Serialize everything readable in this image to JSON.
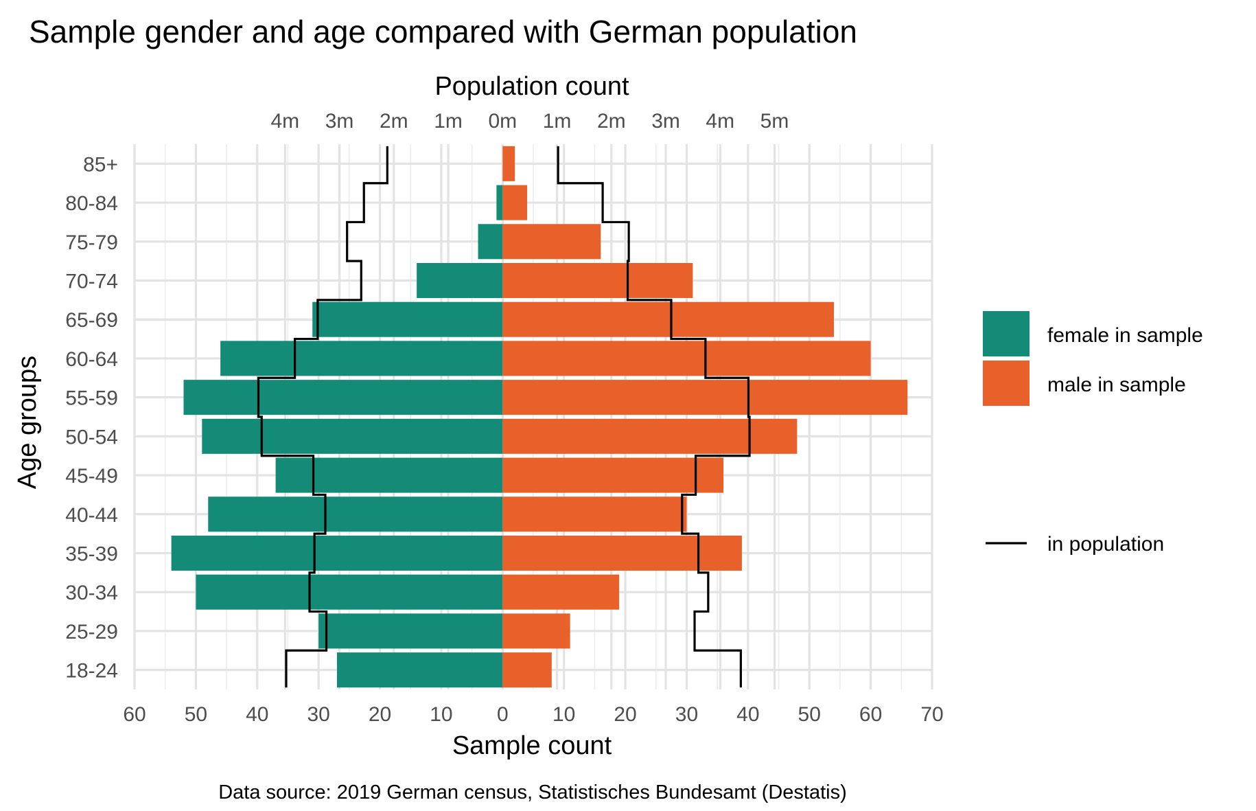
{
  "chart_data": {
    "type": "bar",
    "subtype": "population-pyramid",
    "orientation": "horizontal",
    "title": "Sample gender and age compared with German population",
    "caption": "Data source: 2019 German census, Statistisches Bundesamt (Destatis)",
    "xlabel": "Sample count",
    "x2label": "Population count",
    "ylabel": "Age groups",
    "categories": [
      "18-24",
      "25-29",
      "30-34",
      "35-39",
      "40-44",
      "45-49",
      "50-54",
      "55-59",
      "60-64",
      "65-69",
      "70-74",
      "75-79",
      "80-84",
      "85+"
    ],
    "xlim": [
      -60,
      70
    ],
    "x_ticks": [
      -60,
      -50,
      -40,
      -30,
      -20,
      -10,
      0,
      10,
      20,
      30,
      40,
      50,
      60,
      70
    ],
    "x_tick_labels": [
      "60",
      "50",
      "40",
      "30",
      "20",
      "10",
      "0",
      "10",
      "20",
      "30",
      "40",
      "50",
      "60",
      "70"
    ],
    "x2_ticks_millions": [
      -4,
      -3,
      -2,
      -1,
      0,
      1,
      2,
      3,
      4,
      5
    ],
    "x2_tick_labels": [
      "4m",
      "3m",
      "2m",
      "1m",
      "0m",
      "1m",
      "2m",
      "3m",
      "4m",
      "5m"
    ],
    "series": [
      {
        "name": "female in sample",
        "color": "#138b76",
        "side": "left",
        "values": [
          27,
          30,
          50,
          54,
          48,
          37,
          49,
          52,
          46,
          31,
          14,
          4,
          1,
          0
        ]
      },
      {
        "name": "male in sample",
        "color": "#e8612a",
        "side": "right",
        "values": [
          8,
          11,
          19,
          39,
          30,
          36,
          48,
          66,
          60,
          54,
          31,
          16,
          4,
          2
        ]
      },
      {
        "name": "in population",
        "color": "#000000",
        "type": "step-line",
        "unit": "millions",
        "female_values": [
          3.98,
          3.24,
          3.55,
          3.46,
          3.26,
          3.48,
          4.43,
          4.49,
          3.82,
          3.4,
          2.6,
          2.86,
          2.55,
          2.12
        ],
        "male_values": [
          4.38,
          3.53,
          3.78,
          3.6,
          3.3,
          3.55,
          4.54,
          4.52,
          3.73,
          3.1,
          2.3,
          2.32,
          1.84,
          1.02
        ]
      }
    ],
    "legend": {
      "position": "right",
      "entries": [
        "female in sample",
        "male in sample",
        "in population"
      ]
    },
    "grid": true
  }
}
